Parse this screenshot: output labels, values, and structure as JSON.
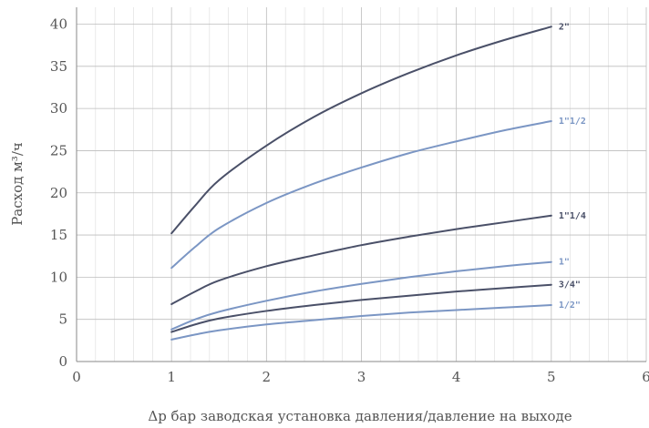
{
  "chart_data": {
    "type": "line",
    "title": "",
    "xlabel": "Δр бар заводская установка давления/давление на выходе",
    "ylabel": "Расход м³/ч",
    "xlim": [
      0,
      6
    ],
    "ylim": [
      0,
      42
    ],
    "x_ticks": [
      0,
      1,
      2,
      3,
      4,
      5,
      6
    ],
    "y_ticks": [
      0,
      5,
      10,
      15,
      20,
      25,
      30,
      35,
      40
    ],
    "x_tick_labels": [
      "0",
      "1",
      "2",
      "3",
      "4",
      "5",
      "6"
    ],
    "y_tick_labels": [
      "0",
      "5",
      "10",
      "15",
      "20",
      "25",
      "30",
      "35",
      "40"
    ],
    "grid": true,
    "legend": "inline labels at line ends",
    "series": [
      {
        "name": "2\"",
        "color": "#4a5068",
        "x": [
          1,
          1.25,
          1.5,
          2,
          2.5,
          3,
          3.5,
          4,
          4.5,
          5
        ],
        "values": [
          15.2,
          18.5,
          21.5,
          25.6,
          29.0,
          31.8,
          34.2,
          36.3,
          38.1,
          39.7
        ]
      },
      {
        "name": "1\"1/2",
        "color": "#7b96c4",
        "x": [
          1,
          1.25,
          1.5,
          2,
          2.5,
          3,
          3.5,
          4,
          4.5,
          5
        ],
        "values": [
          11.1,
          13.6,
          15.8,
          18.8,
          21.1,
          23.0,
          24.7,
          26.1,
          27.4,
          28.5
        ]
      },
      {
        "name": "1\"1/4",
        "color": "#4a5068",
        "x": [
          1,
          1.25,
          1.5,
          2,
          2.5,
          3,
          3.5,
          4,
          4.5,
          5
        ],
        "values": [
          6.8,
          8.3,
          9.6,
          11.3,
          12.6,
          13.8,
          14.8,
          15.7,
          16.5,
          17.3
        ]
      },
      {
        "name": "1\"",
        "color": "#7b96c4",
        "x": [
          1,
          1.25,
          1.5,
          2,
          2.5,
          3,
          3.5,
          4,
          4.5,
          5
        ],
        "values": [
          3.8,
          5.0,
          5.9,
          7.2,
          8.3,
          9.2,
          10.0,
          10.7,
          11.3,
          11.8
        ]
      },
      {
        "name": "3/4\"",
        "color": "#4a5068",
        "x": [
          1,
          1.25,
          1.5,
          2,
          2.5,
          3,
          3.5,
          4,
          4.5,
          5
        ],
        "values": [
          3.5,
          4.4,
          5.1,
          6.0,
          6.7,
          7.3,
          7.8,
          8.3,
          8.7,
          9.1
        ]
      },
      {
        "name": "1/2\"",
        "color": "#7b96c4",
        "x": [
          1,
          1.25,
          1.5,
          2,
          2.5,
          3,
          3.5,
          4,
          4.5,
          5
        ],
        "values": [
          2.6,
          3.2,
          3.7,
          4.4,
          4.9,
          5.4,
          5.8,
          6.1,
          6.4,
          6.7
        ]
      }
    ]
  }
}
